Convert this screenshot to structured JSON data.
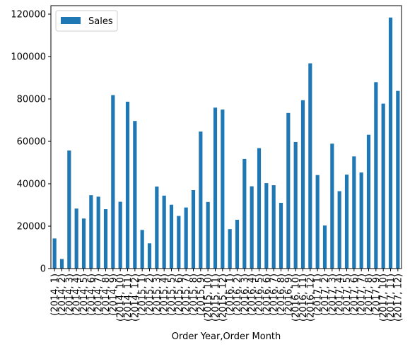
{
  "chart_data": {
    "type": "bar",
    "xlabel": "Order Year,Order Month",
    "ylabel": "",
    "ylim": [
      0,
      124000
    ],
    "yticks": [
      0,
      20000,
      40000,
      60000,
      80000,
      100000,
      120000
    ],
    "yticklabels": [
      "0",
      "20000",
      "40000",
      "60000",
      "80000",
      "100000",
      "120000"
    ],
    "legend_position": "top-left",
    "grid": false,
    "categories": [
      "(2014, 1)",
      "(2014, 2)",
      "(2014, 3)",
      "(2014, 4)",
      "(2014, 5)",
      "(2014, 6)",
      "(2014, 7)",
      "(2014, 8)",
      "(2014, 9)",
      "(2014, 10)",
      "(2014, 11)",
      "(2014, 12)",
      "(2015, 1)",
      "(2015, 2)",
      "(2015, 3)",
      "(2015, 4)",
      "(2015, 5)",
      "(2015, 6)",
      "(2015, 7)",
      "(2015, 8)",
      "(2015, 9)",
      "(2015, 10)",
      "(2015, 11)",
      "(2015, 12)",
      "(2016, 1)",
      "(2016, 2)",
      "(2016, 3)",
      "(2016, 4)",
      "(2016, 5)",
      "(2016, 6)",
      "(2016, 7)",
      "(2016, 8)",
      "(2016, 9)",
      "(2016, 10)",
      "(2016, 11)",
      "(2016, 12)",
      "(2017, 1)",
      "(2017, 2)",
      "(2017, 3)",
      "(2017, 4)",
      "(2017, 5)",
      "(2017, 6)",
      "(2017, 7)",
      "(2017, 8)",
      "(2017, 9)",
      "(2017, 10)",
      "(2017, 11)",
      "(2017, 12)"
    ],
    "xticklabels": [
      "(2014, 1)",
      "(2014, 2)",
      "(2014, 3)",
      "(2014, 4)",
      "(2014, 5)",
      "(2014, 6)",
      "(2014, 7)",
      "(2014, 8)",
      "(2014, 9)",
      "(2014, 10)",
      "(2014, 11)",
      "(2014, 12)",
      "(2015, 1)",
      "(2015, 2)",
      "(2015, 3)",
      "(2015, 4)",
      "(2015, 5)",
      "(2015, 6)",
      "(2015, 7)",
      "(2015, 8)",
      "(2015, 9)",
      "(2015, 10)",
      "(2015, 11)",
      "(2015, 12)",
      "(2016, 1)",
      "(2016, 2)",
      "(2016, 3)",
      "(2016, 4)",
      "(2016, 5)",
      "(2016, 6)",
      "(2016, 7)",
      "(2016, 8)",
      "(2016, 9)",
      "(2016, 10)",
      "(2016, 11)",
      "(2016, 12)",
      "(2017, 1)",
      "(2017, 2)",
      "(2017, 3)",
      "(2017, 4)",
      "(2017, 5)",
      "(2017, 6)",
      "(2017, 7)",
      "(2017, 8)",
      "(2017, 9)",
      "(2017, 10)",
      "(2017, 11)",
      "(2017, 12)"
    ],
    "series": [
      {
        "name": "Sales",
        "color": "#1f77b4",
        "values": [
          14200,
          4500,
          55700,
          28300,
          23600,
          34600,
          33900,
          28000,
          81800,
          31500,
          78700,
          69600,
          18200,
          11900,
          38700,
          34400,
          30100,
          24800,
          28800,
          37000,
          64600,
          31400,
          75900,
          75000,
          18600,
          23000,
          51700,
          38800,
          56800,
          40300,
          39300,
          31000,
          73400,
          59700,
          79400,
          96800,
          44100,
          20300,
          58900,
          36500,
          44300,
          52900,
          45300,
          63100,
          87900,
          77800,
          118400,
          83800
        ]
      }
    ]
  }
}
